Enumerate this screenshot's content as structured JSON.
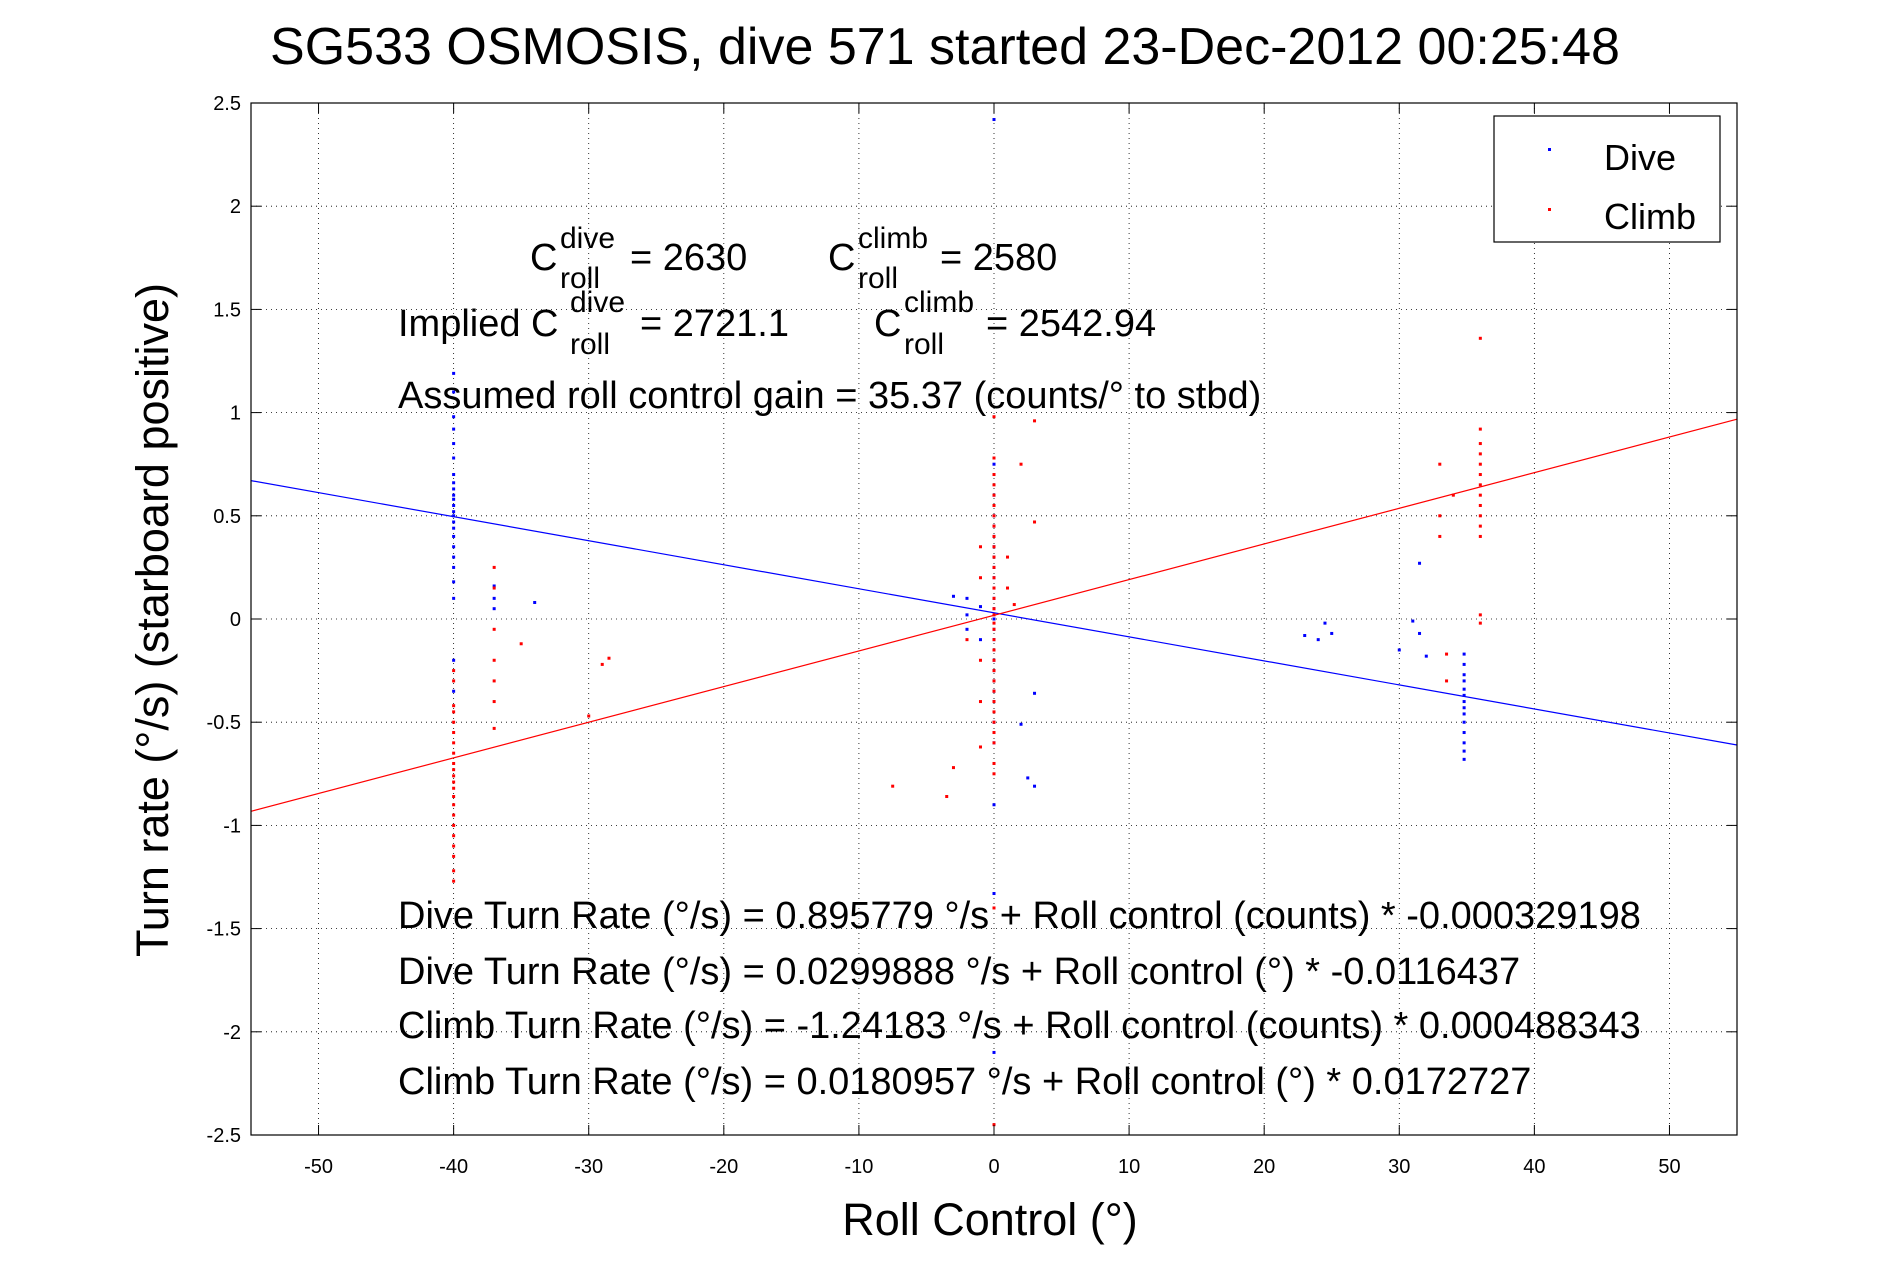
{
  "chart_data": {
    "type": "scatter",
    "title": "SG533 OSMOSIS, dive 571 started 23-Dec-2012 00:25:48",
    "xlabel": "Roll Control (°)",
    "ylabel": "Turn rate (°/s)  (starboard positive)",
    "xlim": [
      -55,
      55
    ],
    "ylim": [
      -2.5,
      2.5
    ],
    "xticks": [
      -50,
      -40,
      -30,
      -20,
      -10,
      0,
      10,
      20,
      30,
      40,
      50
    ],
    "yticks": [
      -2.5,
      -2,
      -1.5,
      -1,
      -0.5,
      0,
      0.5,
      1,
      1.5,
      2,
      2.5
    ],
    "grid": true,
    "legend_position": "top-right",
    "colors": {
      "dive": "#0000ff",
      "climb": "#ff0000"
    },
    "series": [
      {
        "name": "Dive",
        "color": "#0000ff",
        "fit": {
          "intercept": 0.0299888,
          "slope": -0.0116437
        },
        "points": [
          [
            -40,
            1.19
          ],
          [
            -40,
            1.1
          ],
          [
            -40,
            0.98
          ],
          [
            -40,
            0.92
          ],
          [
            -40,
            0.85
          ],
          [
            -40,
            0.78
          ],
          [
            -40,
            0.7
          ],
          [
            -40,
            0.66
          ],
          [
            -40,
            0.63
          ],
          [
            -40,
            0.6
          ],
          [
            -40,
            0.58
          ],
          [
            -40,
            0.55
          ],
          [
            -40,
            0.52
          ],
          [
            -40,
            0.5
          ],
          [
            -40,
            0.47
          ],
          [
            -40,
            0.44
          ],
          [
            -40,
            0.4
          ],
          [
            -40,
            0.35
          ],
          [
            -40,
            0.3
          ],
          [
            -40,
            0.25
          ],
          [
            -40,
            0.18
          ],
          [
            -40,
            0.1
          ],
          [
            -40,
            -0.2
          ],
          [
            -40,
            -0.35
          ],
          [
            -37,
            0.16
          ],
          [
            -37,
            0.1
          ],
          [
            -37,
            0.05
          ],
          [
            -34,
            0.08
          ],
          [
            -3,
            0.11
          ],
          [
            -2,
            0.02
          ],
          [
            -2,
            -0.05
          ],
          [
            -2,
            0.1
          ],
          [
            -1,
            -0.1
          ],
          [
            -1,
            0.06
          ],
          [
            0,
            2.42
          ],
          [
            0,
            0.75
          ],
          [
            0,
            0.6
          ],
          [
            0,
            0.5
          ],
          [
            0,
            0.45
          ],
          [
            0,
            0.4
          ],
          [
            0,
            0.35
          ],
          [
            0,
            0.3
          ],
          [
            0,
            0.25
          ],
          [
            0,
            0.2
          ],
          [
            0,
            0.15
          ],
          [
            0,
            0.1
          ],
          [
            0,
            0.05
          ],
          [
            0,
            0
          ],
          [
            0,
            -0.05
          ],
          [
            0,
            -0.1
          ],
          [
            0,
            -0.15
          ],
          [
            0,
            -0.2
          ],
          [
            0,
            -0.25
          ],
          [
            0,
            -0.3
          ],
          [
            0,
            -0.35
          ],
          [
            0,
            -0.4
          ],
          [
            0,
            -0.5
          ],
          [
            0,
            -0.6
          ],
          [
            0,
            -0.9
          ],
          [
            0,
            -1.33
          ],
          [
            0,
            -2.1
          ],
          [
            3,
            -0.36
          ],
          [
            2,
            -0.51
          ],
          [
            2.5,
            -0.77
          ],
          [
            3,
            -0.81
          ],
          [
            23,
            -0.08
          ],
          [
            24,
            -0.1
          ],
          [
            24.5,
            -0.02
          ],
          [
            25,
            -0.07
          ],
          [
            30,
            -0.15
          ],
          [
            31,
            -0.01
          ],
          [
            31.5,
            -0.07
          ],
          [
            32,
            -0.18
          ],
          [
            31.5,
            0.27
          ],
          [
            34.8,
            -0.17
          ],
          [
            34.8,
            -0.22
          ],
          [
            34.8,
            -0.27
          ],
          [
            34.8,
            -0.3
          ],
          [
            34.8,
            -0.34
          ],
          [
            34.8,
            -0.37
          ],
          [
            34.8,
            -0.4
          ],
          [
            34.8,
            -0.43
          ],
          [
            34.8,
            -0.46
          ],
          [
            34.8,
            -0.5
          ],
          [
            34.8,
            -0.55
          ],
          [
            34.8,
            -0.6
          ],
          [
            34.8,
            -0.64
          ],
          [
            34.8,
            -0.68
          ]
        ]
      },
      {
        "name": "Climb",
        "color": "#ff0000",
        "fit": {
          "intercept": 0.0180957,
          "slope": 0.0172727
        },
        "points": [
          [
            -40,
            -0.42
          ],
          [
            -40,
            -0.45
          ],
          [
            -40,
            -0.5
          ],
          [
            -40,
            -0.55
          ],
          [
            -40,
            -0.6
          ],
          [
            -40,
            -0.65
          ],
          [
            -40,
            -0.7
          ],
          [
            -40,
            -0.73
          ],
          [
            -40,
            -0.76
          ],
          [
            -40,
            -0.79
          ],
          [
            -40,
            -0.82
          ],
          [
            -40,
            -0.86
          ],
          [
            -40,
            -0.9
          ],
          [
            -40,
            -0.95
          ],
          [
            -40,
            -1.0
          ],
          [
            -40,
            -1.05
          ],
          [
            -40,
            -1.1
          ],
          [
            -40,
            -1.15
          ],
          [
            -40,
            -1.22
          ],
          [
            -40,
            -1.27
          ],
          [
            -40,
            -0.25
          ],
          [
            -40,
            -0.3
          ],
          [
            -37,
            0.25
          ],
          [
            -37,
            0.15
          ],
          [
            -37,
            -0.05
          ],
          [
            -37,
            -0.2
          ],
          [
            -37,
            -0.3
          ],
          [
            -37,
            -0.4
          ],
          [
            -37,
            -0.53
          ],
          [
            -35,
            -0.12
          ],
          [
            -29,
            -0.22
          ],
          [
            -28.5,
            -0.19
          ],
          [
            -30,
            -0.47
          ],
          [
            0,
            0.98
          ],
          [
            0,
            0.78
          ],
          [
            0,
            0.7
          ],
          [
            0,
            0.65
          ],
          [
            0,
            0.6
          ],
          [
            0,
            0.55
          ],
          [
            0,
            0.5
          ],
          [
            0,
            0.45
          ],
          [
            0,
            0.4
          ],
          [
            0,
            0.35
          ],
          [
            0,
            0.3
          ],
          [
            0,
            0.25
          ],
          [
            0,
            0.2
          ],
          [
            0,
            0.15
          ],
          [
            0,
            0.1
          ],
          [
            0,
            0.05
          ],
          [
            0,
            0.02
          ],
          [
            0,
            -0.02
          ],
          [
            0,
            -0.05
          ],
          [
            0,
            -0.1
          ],
          [
            0,
            -0.15
          ],
          [
            0,
            -0.2
          ],
          [
            0,
            -0.25
          ],
          [
            0,
            -0.3
          ],
          [
            0,
            -0.35
          ],
          [
            0,
            -0.4
          ],
          [
            0,
            -0.45
          ],
          [
            0,
            -0.5
          ],
          [
            0,
            -0.55
          ],
          [
            0,
            -0.6
          ],
          [
            0,
            -0.7
          ],
          [
            0,
            -0.75
          ],
          [
            0,
            -1.4
          ],
          [
            0,
            -2.45
          ],
          [
            1,
            0.3
          ],
          [
            1,
            0.15
          ],
          [
            -1,
            0.35
          ],
          [
            -1,
            0.2
          ],
          [
            -1,
            -0.2
          ],
          [
            -1,
            -0.4
          ],
          [
            -1,
            -0.62
          ],
          [
            2,
            0.75
          ],
          [
            3,
            0.96
          ],
          [
            3,
            0.47
          ],
          [
            -2,
            -0.1
          ],
          [
            -3,
            -0.72
          ],
          [
            -3.5,
            -0.86
          ],
          [
            -7.5,
            -0.81
          ],
          [
            1.5,
            0.07
          ],
          [
            33,
            0.75
          ],
          [
            33,
            0.5
          ],
          [
            33,
            0.4
          ],
          [
            33.5,
            -0.17
          ],
          [
            33.5,
            -0.3
          ],
          [
            34,
            0.6
          ],
          [
            36,
            1.36
          ],
          [
            36,
            0.92
          ],
          [
            36,
            0.85
          ],
          [
            36,
            0.8
          ],
          [
            36,
            0.75
          ],
          [
            36,
            0.7
          ],
          [
            36,
            0.65
          ],
          [
            36,
            0.6
          ],
          [
            36,
            0.55
          ],
          [
            36,
            0.5
          ],
          [
            36,
            0.45
          ],
          [
            36,
            0.4
          ],
          [
            36,
            0.02
          ],
          [
            36,
            -0.02
          ]
        ]
      }
    ],
    "annotations": {
      "c_dive_label": "C",
      "c_dive_sup": "dive",
      "c_dive_sub": "roll",
      "c_dive_value": "= 2630",
      "c_climb_label": "C",
      "c_climb_sup": "climb",
      "c_climb_sub": "roll",
      "c_climb_value": "= 2580",
      "implied_prefix": "Implied C",
      "implied_dive_sup": "dive",
      "implied_dive_sub": "roll",
      "implied_dive_value": "= 2721.1",
      "implied_climb_label": "C",
      "implied_climb_sup": "climb",
      "implied_climb_sub": "roll",
      "implied_climb_value": "= 2542.94",
      "gain": "Assumed roll control gain = 35.37 (counts/° to stbd)",
      "eq1": "Dive Turn Rate (°/s) = 0.895779 °/s + Roll control (counts) * -0.000329198",
      "eq2": "Dive Turn Rate (°/s) = 0.0299888 °/s + Roll control (°) * -0.0116437",
      "eq3": "Climb Turn Rate (°/s) = -1.24183 °/s + Roll control (counts) * 0.000488343",
      "eq4": "Climb Turn Rate (°/s) = 0.0180957 °/s + Roll control (°) * 0.0172727"
    }
  }
}
